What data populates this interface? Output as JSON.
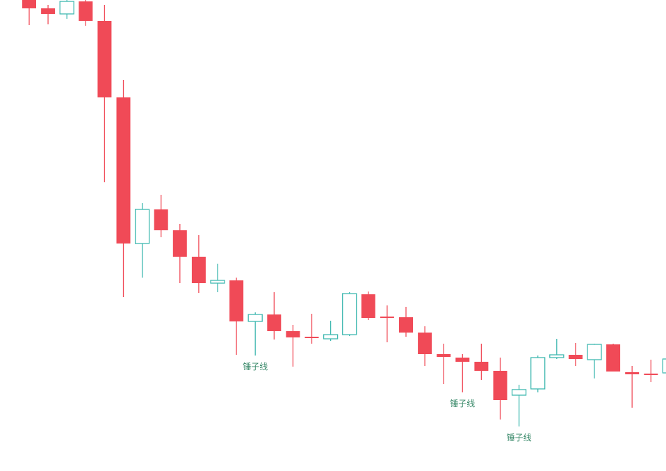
{
  "chart_data": {
    "type": "candlestick",
    "title": "",
    "xlabel": "",
    "ylabel": "",
    "ylim": [
      0,
      677
    ],
    "grid": false,
    "colors": {
      "down": "#f04a57",
      "up": "#3fb8b0"
    },
    "candles": [
      {
        "o": 677,
        "c": 665,
        "h": 677,
        "l": 641
      },
      {
        "o": 665,
        "c": 657,
        "h": 670,
        "l": 642
      },
      {
        "o": 657,
        "c": 675,
        "h": 677,
        "l": 650
      },
      {
        "o": 675,
        "c": 647,
        "h": 677,
        "l": 640
      },
      {
        "o": 647,
        "c": 537,
        "h": 670,
        "l": 415
      },
      {
        "o": 537,
        "c": 327,
        "h": 562,
        "l": 250
      },
      {
        "o": 327,
        "c": 376,
        "h": 385,
        "l": 278
      },
      {
        "o": 376,
        "c": 346,
        "h": 397,
        "l": 336
      },
      {
        "o": 346,
        "c": 308,
        "h": 355,
        "l": 270
      },
      {
        "o": 308,
        "c": 270,
        "h": 339,
        "l": 256
      },
      {
        "o": 270,
        "c": 274,
        "h": 298,
        "l": 257
      },
      {
        "o": 274,
        "c": 215,
        "h": 278,
        "l": 167
      },
      {
        "o": 215,
        "c": 225,
        "h": 228,
        "l": 166
      },
      {
        "o": 225,
        "c": 201,
        "h": 257,
        "l": 189
      },
      {
        "o": 201,
        "c": 192,
        "h": 210,
        "l": 150
      },
      {
        "o": 192,
        "c": 190,
        "h": 226,
        "l": 183
      },
      {
        "o": 190,
        "c": 196,
        "h": 216,
        "l": 187
      },
      {
        "o": 196,
        "c": 255,
        "h": 257,
        "l": 194
      },
      {
        "o": 254,
        "c": 220,
        "h": 258,
        "l": 217
      },
      {
        "o": 221,
        "c": 221,
        "h": 238,
        "l": 185
      },
      {
        "o": 221,
        "c": 199,
        "h": 236,
        "l": 193
      },
      {
        "o": 199,
        "c": 168,
        "h": 208,
        "l": 151
      },
      {
        "o": 168,
        "c": 164,
        "h": 183,
        "l": 125
      },
      {
        "o": 163,
        "c": 157,
        "h": 168,
        "l": 113
      },
      {
        "o": 157,
        "c": 144,
        "h": 183,
        "l": 131
      },
      {
        "o": 144,
        "c": 102,
        "h": 163,
        "l": 74
      },
      {
        "o": 109,
        "c": 117,
        "h": 124,
        "l": 64
      },
      {
        "o": 118,
        "c": 163,
        "h": 166,
        "l": 113
      },
      {
        "o": 163,
        "c": 167,
        "h": 190,
        "l": 161
      },
      {
        "o": 167,
        "c": 161,
        "h": 184,
        "l": 151
      },
      {
        "o": 160,
        "c": 182,
        "h": 183,
        "l": 133
      },
      {
        "o": 182,
        "c": 143,
        "h": 183,
        "l": 143
      },
      {
        "o": 142,
        "c": 139,
        "h": 151,
        "l": 91
      },
      {
        "o": 139,
        "c": 139,
        "h": 160,
        "l": 128
      },
      {
        "o": 141,
        "c": 161,
        "h": 162,
        "l": 140
      }
    ],
    "annotations": [
      {
        "index": 12,
        "text": "锤子线"
      },
      {
        "index": 23,
        "text": "锤子线"
      },
      {
        "index": 26,
        "text": "锤子线"
      }
    ]
  }
}
